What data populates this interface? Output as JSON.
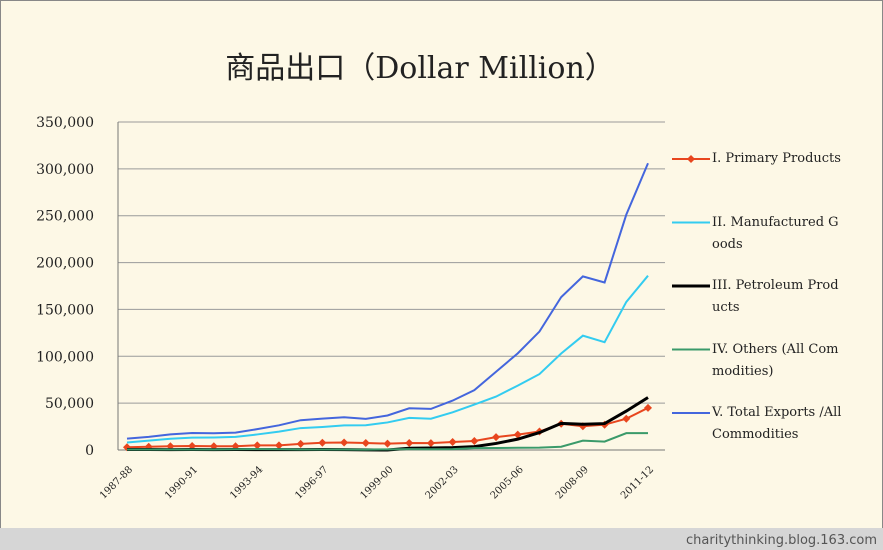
{
  "chart_data": {
    "type": "line",
    "title": "商品出口（Dollar Million）",
    "categories": [
      "1987-88",
      null,
      null,
      "1990-91",
      null,
      null,
      "1993-94",
      null,
      null,
      "1996-97",
      null,
      null,
      "1999-00",
      null,
      null,
      "2002-03",
      null,
      null,
      "2005-06",
      null,
      null,
      "2008-09",
      null,
      null,
      "2011-12"
    ],
    "series": [
      {
        "name": "I. Primary Products",
        "color": "#e8461e",
        "values": [
          3000,
          3500,
          4000,
          4300,
          4000,
          4000,
          5000,
          5000,
          6500,
          7800,
          8000,
          7500,
          6800,
          7500,
          7400,
          8600,
          9600,
          13700,
          16400,
          19700,
          28000,
          25300,
          27000,
          33400,
          45000
        ]
      },
      {
        "name": "II. Manufactured Goods",
        "color": "#33ccf0",
        "values": [
          8000,
          10000,
          12000,
          13200,
          13400,
          14000,
          16600,
          19600,
          23400,
          24600,
          26300,
          26400,
          29400,
          34300,
          33400,
          40200,
          48500,
          57000,
          68700,
          81000,
          103000,
          122000,
          115000,
          158000,
          186000
        ]
      },
      {
        "name": "III. Petroleum Products",
        "color": "#000000",
        "values": [
          500,
          500,
          400,
          500,
          400,
          500,
          400,
          400,
          450,
          480,
          350,
          90,
          40,
          1870,
          2120,
          2580,
          3570,
          6990,
          11600,
          18600,
          28400,
          27500,
          28200,
          41500,
          56000
        ]
      },
      {
        "name": "IV. Others (All Commodities)",
        "color": "#3a9a6a",
        "values": [
          500,
          500,
          600,
          600,
          600,
          800,
          900,
          800,
          600,
          600,
          500,
          400,
          700,
          900,
          800,
          1000,
          2000,
          2200,
          2400,
          2600,
          3500,
          10000,
          9000,
          18000,
          18000
        ]
      },
      {
        "name": "V. Total Exports /All Commodities",
        "color": "#4466dd",
        "values": [
          12089,
          13970,
          16612,
          18143,
          17865,
          18537,
          22238,
          26330,
          31797,
          33470,
          35006,
          33218,
          36822,
          44560,
          43827,
          52719,
          63843,
          83536,
          103091,
          126414,
          163132,
          185295,
          178751,
          251136,
          305964
        ]
      }
    ],
    "ylim": [
      0,
      350000
    ],
    "yticks": [
      0,
      {
        "value": 50000,
        "label": "50,000"
      },
      {
        "value": 100000,
        "label": "100,000"
      },
      {
        "value": 150000,
        "label": "150,000"
      },
      {
        "value": 200000,
        "label": "200,000"
      },
      {
        "value": 250000,
        "label": "250,000"
      },
      {
        "value": 300000,
        "label": "300,000"
      },
      {
        "value": 350000,
        "label": "350,000"
      }
    ],
    "grid": true,
    "legend": "right",
    "watermark": "charitythinking.blog.163.com"
  }
}
